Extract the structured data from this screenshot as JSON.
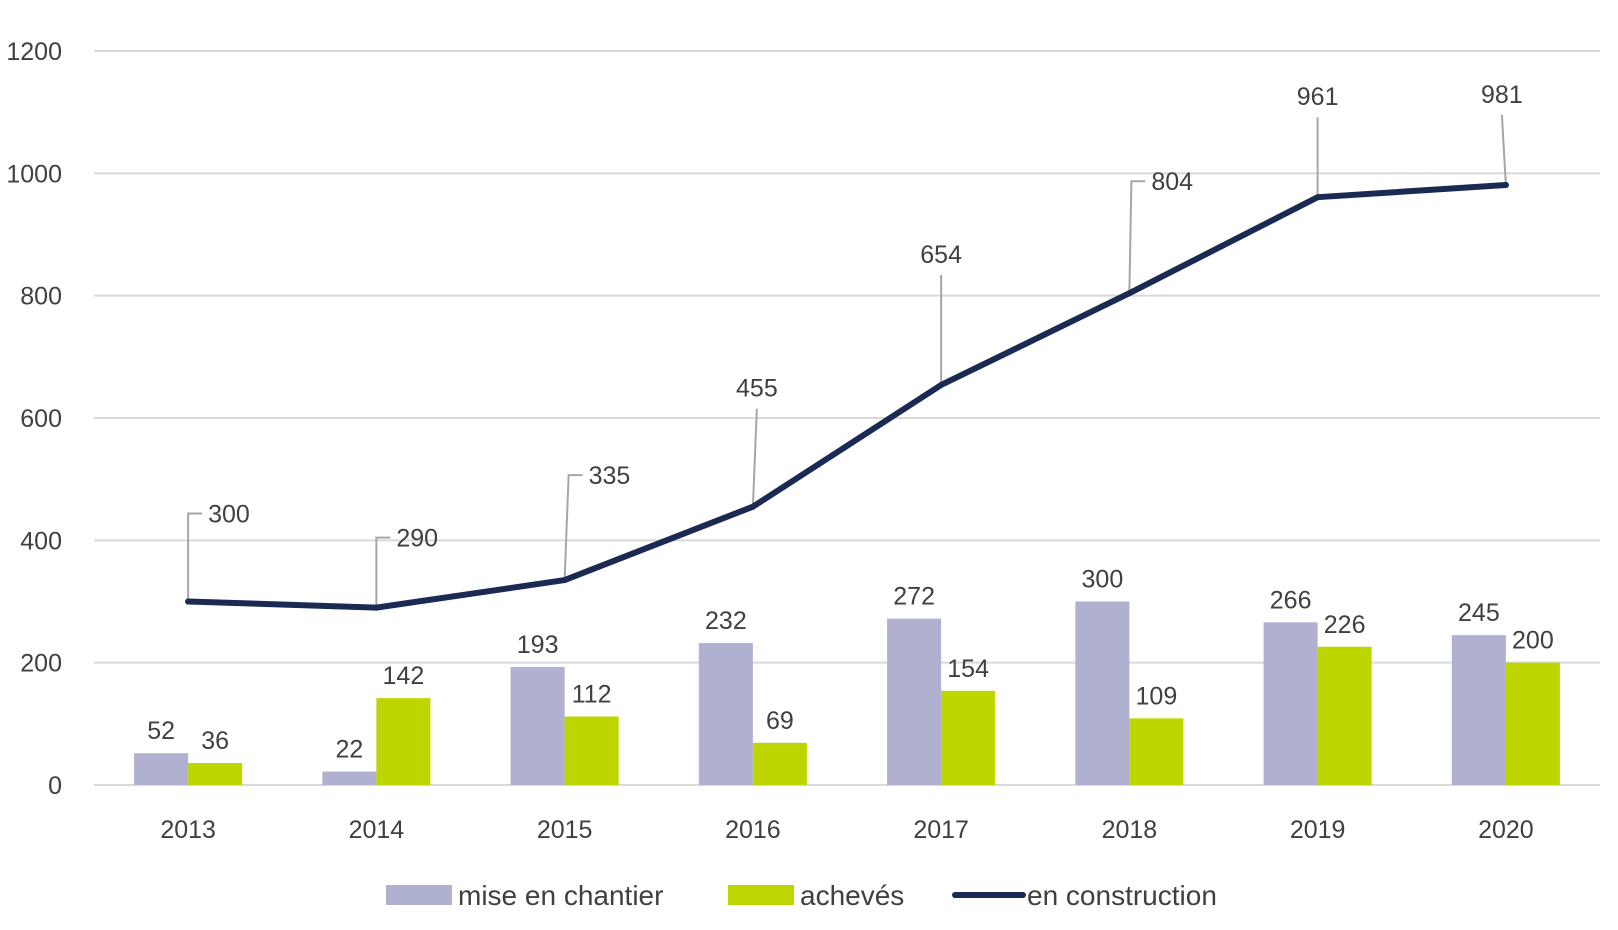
{
  "chart_data": {
    "type": "bar",
    "title": "",
    "xlabel": "",
    "ylabel": "",
    "categories": [
      "2013",
      "2014",
      "2015",
      "2016",
      "2017",
      "2018",
      "2019",
      "2020"
    ],
    "ylim": [
      0,
      1200
    ],
    "yticks": [
      0,
      200,
      400,
      600,
      800,
      1000,
      1200
    ],
    "grid": true,
    "legend_position": "bottom",
    "series": [
      {
        "name": "mise en chantier",
        "type": "bar",
        "color": "#b0b0d0",
        "values": [
          52,
          22,
          193,
          232,
          272,
          300,
          266,
          245
        ]
      },
      {
        "name": "achevés",
        "type": "bar",
        "color": "#bed600",
        "values": [
          36,
          142,
          112,
          69,
          154,
          109,
          226,
          200
        ]
      },
      {
        "name": "en construction",
        "type": "line",
        "color": "#1b2a52",
        "values": [
          300,
          290,
          335,
          455,
          654,
          804,
          961,
          981
        ]
      }
    ]
  }
}
